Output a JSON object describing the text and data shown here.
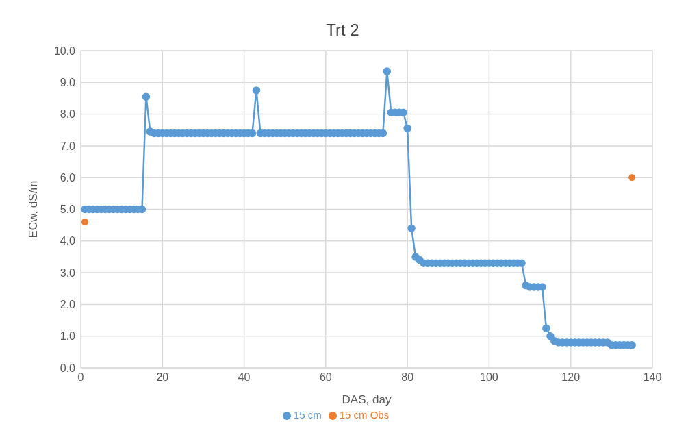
{
  "chart_data": {
    "type": "line",
    "title": "Trt 2",
    "xlabel": "DAS, day",
    "ylabel": "ECw, dS/m",
    "xlim": [
      0,
      140
    ],
    "xticks": [
      0,
      20,
      40,
      60,
      80,
      100,
      120,
      140
    ],
    "ylim": [
      0,
      10
    ],
    "yticks": [
      {
        "value": 0,
        "label": "0.0"
      },
      {
        "value": 1,
        "label": "1.0"
      },
      {
        "value": 2,
        "label": "2.0"
      },
      {
        "value": 3,
        "label": "3.0"
      },
      {
        "value": 4,
        "label": "4.0"
      },
      {
        "value": 5,
        "label": "5.0"
      },
      {
        "value": 6,
        "label": "6.0"
      },
      {
        "value": 7,
        "label": "7.0"
      },
      {
        "value": 8,
        "label": "8.0"
      },
      {
        "value": 9,
        "label": "9.0"
      },
      {
        "value": 10,
        "label": "10.0"
      }
    ],
    "grid": true,
    "legend": "bottom",
    "marker": "circle",
    "series": [
      {
        "name": "15 cm",
        "color": "#5b9bd5",
        "x": [
          1,
          2,
          3,
          4,
          5,
          6,
          7,
          8,
          9,
          10,
          11,
          12,
          13,
          14,
          15,
          16,
          17,
          18,
          19,
          20,
          21,
          22,
          23,
          24,
          25,
          26,
          27,
          28,
          29,
          30,
          31,
          32,
          33,
          34,
          35,
          36,
          37,
          38,
          39,
          40,
          41,
          42,
          43,
          44,
          45,
          46,
          47,
          48,
          49,
          50,
          51,
          52,
          53,
          54,
          55,
          56,
          57,
          58,
          59,
          60,
          61,
          62,
          63,
          64,
          65,
          66,
          67,
          68,
          69,
          70,
          71,
          72,
          73,
          74,
          75,
          76,
          77,
          78,
          79,
          80,
          81,
          82,
          83,
          84,
          85,
          86,
          87,
          88,
          89,
          90,
          91,
          92,
          93,
          94,
          95,
          96,
          97,
          98,
          99,
          100,
          101,
          102,
          103,
          104,
          105,
          106,
          107,
          108,
          109,
          110,
          111,
          112,
          113,
          114,
          115,
          116,
          117,
          118,
          119,
          120,
          121,
          122,
          123,
          124,
          125,
          126,
          127,
          128,
          129,
          130,
          131,
          132,
          133,
          134,
          135
        ],
        "values": [
          5.0,
          5.0,
          5.0,
          5.0,
          5.0,
          5.0,
          5.0,
          5.0,
          5.0,
          5.0,
          5.0,
          5.0,
          5.0,
          5.0,
          5.0,
          8.55,
          7.45,
          7.4,
          7.4,
          7.4,
          7.4,
          7.4,
          7.4,
          7.4,
          7.4,
          7.4,
          7.4,
          7.4,
          7.4,
          7.4,
          7.4,
          7.4,
          7.4,
          7.4,
          7.4,
          7.4,
          7.4,
          7.4,
          7.4,
          7.4,
          7.4,
          7.4,
          8.75,
          7.4,
          7.4,
          7.4,
          7.4,
          7.4,
          7.4,
          7.4,
          7.4,
          7.4,
          7.4,
          7.4,
          7.4,
          7.4,
          7.4,
          7.4,
          7.4,
          7.4,
          7.4,
          7.4,
          7.4,
          7.4,
          7.4,
          7.4,
          7.4,
          7.4,
          7.4,
          7.4,
          7.4,
          7.4,
          7.4,
          7.4,
          9.35,
          8.05,
          8.05,
          8.05,
          8.05,
          7.55,
          4.4,
          3.5,
          3.4,
          3.3,
          3.3,
          3.3,
          3.3,
          3.3,
          3.3,
          3.3,
          3.3,
          3.3,
          3.3,
          3.3,
          3.3,
          3.3,
          3.3,
          3.3,
          3.3,
          3.3,
          3.3,
          3.3,
          3.3,
          3.3,
          3.3,
          3.3,
          3.3,
          3.3,
          2.6,
          2.55,
          2.55,
          2.55,
          2.55,
          1.25,
          1.0,
          0.85,
          0.8,
          0.8,
          0.8,
          0.8,
          0.8,
          0.8,
          0.8,
          0.8,
          0.8,
          0.8,
          0.8,
          0.8,
          0.8,
          0.72,
          0.72,
          0.72,
          0.72,
          0.72,
          0.72
        ]
      },
      {
        "name": "15 cm Obs",
        "type": "scatter",
        "color": "#ed7d31",
        "x": [
          1,
          135
        ],
        "values": [
          4.6,
          6.0
        ]
      }
    ]
  }
}
